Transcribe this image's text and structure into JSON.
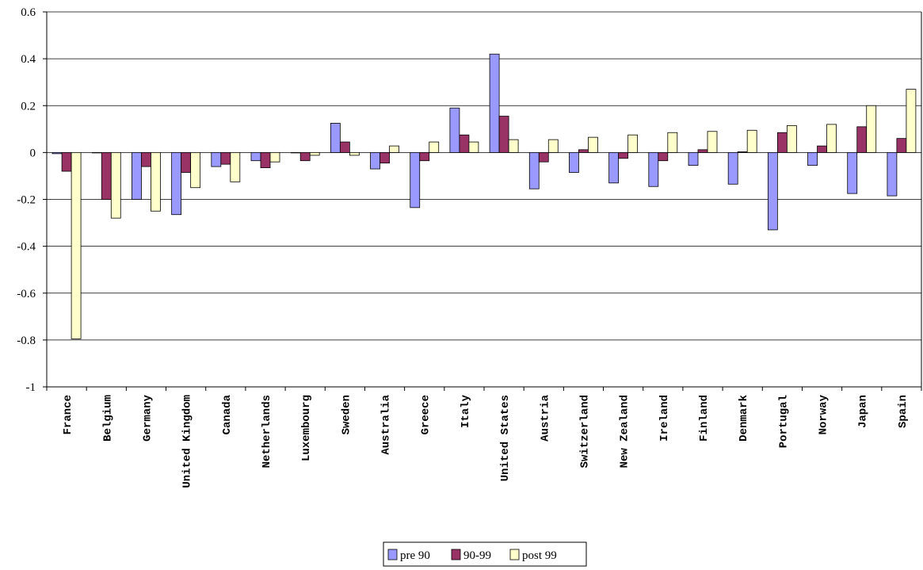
{
  "chart_data": {
    "type": "bar",
    "title": "",
    "xlabel": "",
    "ylabel": "",
    "ylim": [
      -1,
      0.6
    ],
    "yticks": [
      -1,
      -0.8,
      -0.6,
      -0.4,
      -0.2,
      0,
      0.2,
      0.4,
      0.6
    ],
    "ytick_labels": [
      "-1",
      "-0.8",
      "-0.6",
      "-0.4",
      "-0.2",
      "0",
      "0.2",
      "0.4",
      "0.6"
    ],
    "grid": true,
    "legend_position": "bottom",
    "categories": [
      "France",
      "Belgium",
      "Germany",
      "United Kingdom",
      "Canada",
      "Netherlands",
      "Luxembourg",
      "Sweden",
      "Australia",
      "Greece",
      "Italy",
      "United States",
      "Austria",
      "Switzerland",
      "New Zealand",
      "Ireland",
      "Finland",
      "Denmark",
      "Portugal",
      "Norway",
      "Japan",
      "Spain"
    ],
    "series": [
      {
        "name": "pre 90",
        "color": "#9999ff",
        "values": [
          -0.005,
          0,
          -0.2,
          -0.265,
          -0.06,
          -0.035,
          0,
          0.125,
          -0.07,
          -0.235,
          0.19,
          0.42,
          -0.155,
          -0.085,
          -0.13,
          -0.145,
          -0.055,
          -0.135,
          -0.33,
          -0.055,
          -0.175,
          -0.185
        ]
      },
      {
        "name": "90-99",
        "color": "#993366",
        "values": [
          -0.08,
          -0.2,
          -0.06,
          -0.085,
          -0.05,
          -0.065,
          -0.035,
          0.045,
          -0.045,
          -0.035,
          0.075,
          0.155,
          -0.04,
          0.012,
          -0.025,
          -0.035,
          0.012,
          0.003,
          0.085,
          0.028,
          0.11,
          0.06
        ]
      },
      {
        "name": "post 99",
        "color": "#ffffcc",
        "values": [
          -0.795,
          -0.28,
          -0.25,
          -0.15,
          -0.125,
          -0.04,
          -0.012,
          -0.012,
          0.028,
          0.045,
          0.045,
          0.055,
          0.055,
          0.065,
          0.075,
          0.085,
          0.09,
          0.095,
          0.115,
          0.12,
          0.2,
          0.27
        ]
      }
    ]
  }
}
